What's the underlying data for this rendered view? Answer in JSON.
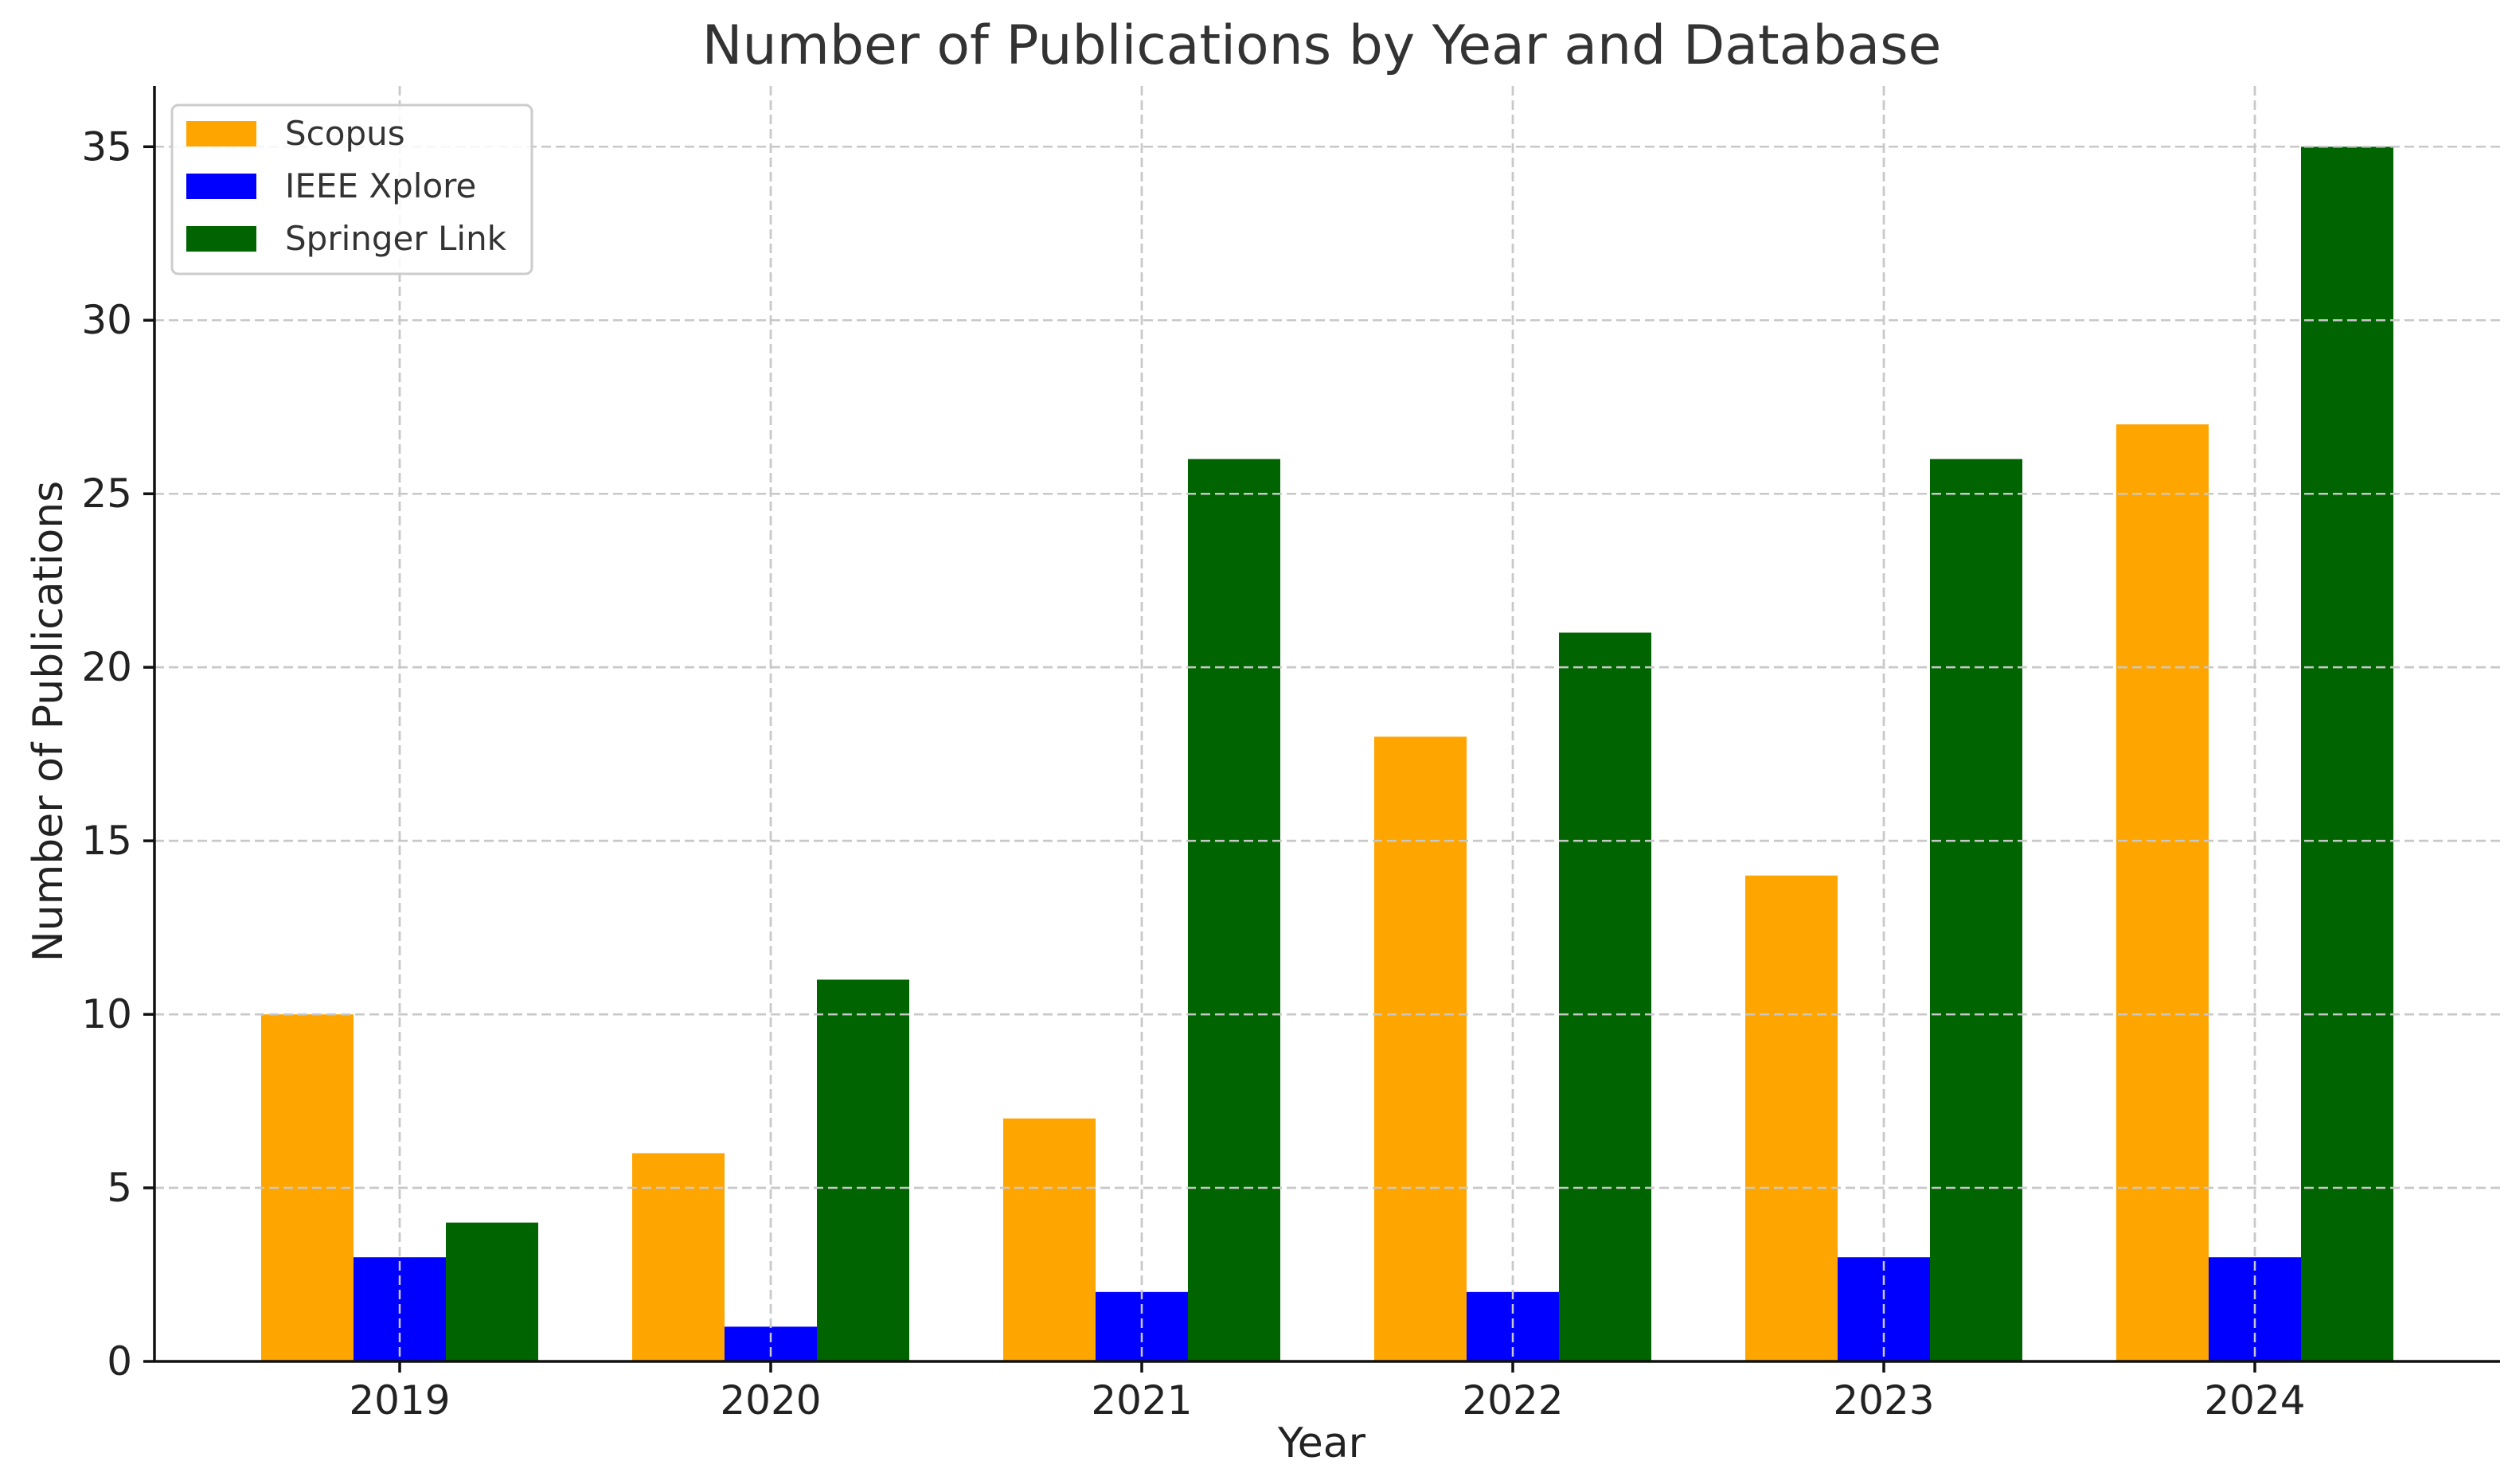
{
  "chart_data": {
    "type": "bar",
    "title": "Number of Publications by Year and Database",
    "xlabel": "Year",
    "ylabel": "Number of Publications",
    "categories": [
      "2019",
      "2020",
      "2021",
      "2022",
      "2023",
      "2024"
    ],
    "series": [
      {
        "name": "Scopus",
        "color": "#ffa500",
        "values": [
          10,
          6,
          7,
          18,
          14,
          27
        ]
      },
      {
        "name": "IEEE Xplore",
        "color": "#0000ff",
        "values": [
          3,
          1,
          2,
          2,
          3,
          3
        ]
      },
      {
        "name": "Springer Link",
        "color": "#006400",
        "values": [
          4,
          11,
          26,
          21,
          26,
          35
        ]
      }
    ],
    "ylim": [
      0,
      36.75
    ],
    "yticks": [
      0,
      5,
      10,
      15,
      20,
      25,
      30,
      35
    ],
    "grid": true,
    "legend_position": "top-left"
  }
}
